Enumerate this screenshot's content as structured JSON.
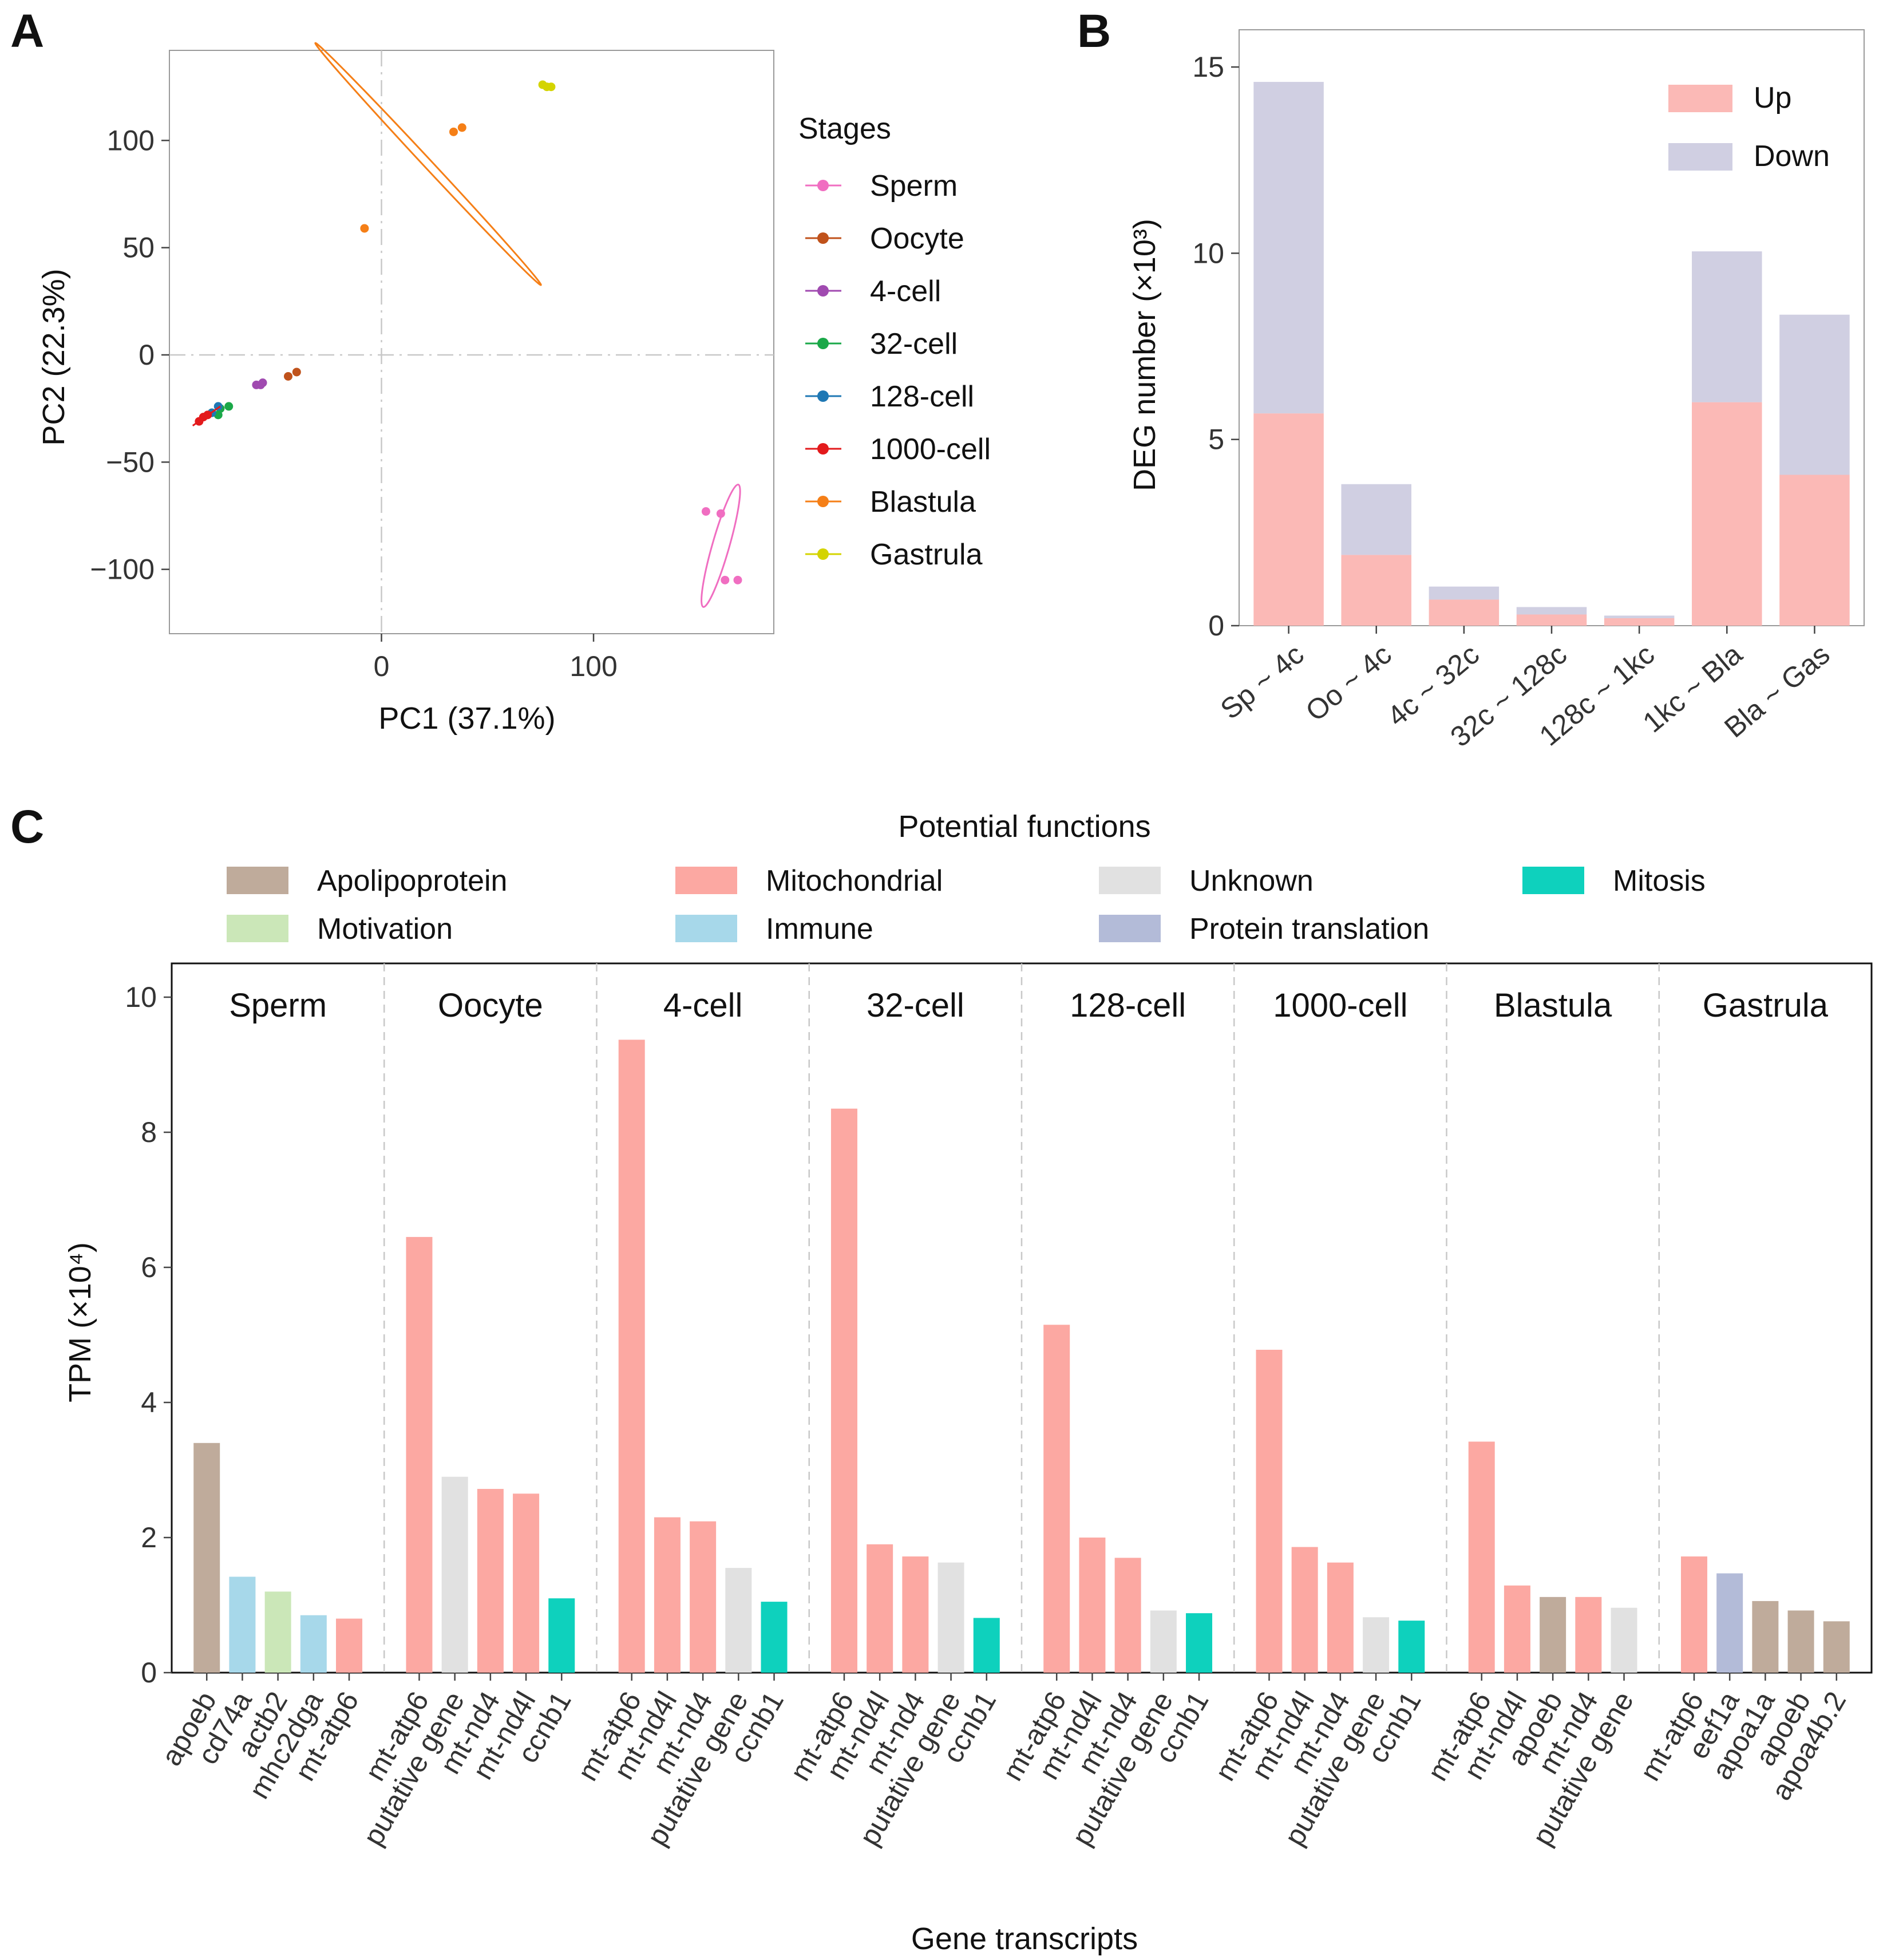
{
  "chart_data": [
    {
      "panel": "A",
      "type": "scatter",
      "xlabel": "PC1 (37.1%)",
      "ylabel": "PC2 (22.3%)",
      "xticks": [
        "0",
        "100"
      ],
      "yticks": [
        "−100",
        "−50",
        "0",
        "50",
        "100"
      ],
      "xtick_values": [
        0,
        100
      ],
      "ytick_values": [
        -100,
        -50,
        0,
        50,
        100
      ],
      "xlim": [
        -100,
        185
      ],
      "ylim": [
        -130,
        142
      ],
      "legend_title": "Stages",
      "legend_position": "right",
      "series": [
        {
          "name": "Sperm",
          "color": "#f06ec1",
          "points": [
            [
              153,
              -73
            ],
            [
              160,
              -74
            ],
            [
              162,
              -105
            ],
            [
              168,
              -105
            ]
          ],
          "ellipse": {
            "cx": 160,
            "cy": -89,
            "rx": 30,
            "ry": 4,
            "angle": -74
          }
        },
        {
          "name": "Oocyte",
          "color": "#c0521b",
          "points": [
            [
              -40,
              -8
            ],
            [
              -44,
              -10
            ]
          ]
        },
        {
          "name": "4-cell",
          "color": "#a04ab0",
          "points": [
            [
              -56,
              -13
            ],
            [
              -57,
              -14
            ],
            [
              -59,
              -14
            ]
          ]
        },
        {
          "name": "32-cell",
          "color": "#1aa848",
          "points": [
            [
              -72,
              -24
            ],
            [
              -77,
              -28
            ],
            [
              -80,
              -27
            ],
            [
              -76,
              -25
            ]
          ]
        },
        {
          "name": "128-cell",
          "color": "#1f78b4",
          "points": [
            [
              -77,
              -24
            ],
            [
              -80,
              -27
            ]
          ]
        },
        {
          "name": "1000-cell",
          "color": "#e31a1c",
          "points": [
            [
              -84,
              -29
            ],
            [
              -86,
              -31
            ],
            [
              -82,
              -28
            ]
          ]
        },
        {
          "name": "Blastula",
          "color": "#f57f17",
          "points": [
            [
              -8,
              59
            ],
            [
              34,
              104
            ],
            [
              38,
              106
            ]
          ],
          "ellipse": {
            "cx": 22,
            "cy": 89,
            "rx": 78,
            "ry": 2,
            "angle": 47
          }
        },
        {
          "name": "Gastrula",
          "color": "#d4d400",
          "points": [
            [
              76,
              126
            ],
            [
              78,
              125
            ],
            [
              80,
              125
            ]
          ]
        }
      ]
    },
    {
      "panel": "B",
      "type": "bar",
      "stacked": true,
      "ylabel": "DEG number (×10³)",
      "ylim": [
        0,
        16
      ],
      "yticks": [
        "0",
        "5",
        "10",
        "15"
      ],
      "ytick_values": [
        0,
        5,
        10,
        15
      ],
      "categories": [
        "Sp ~ 4c",
        "Oo ~ 4c",
        "4c ~ 32c",
        "32c ~ 128c",
        "128c ~ 1kc",
        "1kc ~ Bla",
        "Bla ~ Gas"
      ],
      "legend_position": "top-right",
      "series": [
        {
          "name": "Up",
          "color": "#fbb9b6",
          "values": [
            5.7,
            1.9,
            0.7,
            0.3,
            0.2,
            6.0,
            4.05
          ]
        },
        {
          "name": "Down",
          "color": "#d0cfe2",
          "values": [
            8.9,
            1.9,
            0.35,
            0.2,
            0.07,
            4.05,
            4.3
          ]
        }
      ]
    },
    {
      "panel": "C",
      "type": "bar",
      "title": "Potential functions",
      "xlabel": "Gene transcripts",
      "ylabel": "TPM (×10⁴)",
      "ylim": [
        0,
        10.5
      ],
      "yticks": [
        "0",
        "2",
        "4",
        "6",
        "8",
        "10"
      ],
      "ytick_values": [
        0,
        2,
        4,
        6,
        8,
        10
      ],
      "functions": [
        {
          "name": "Apolipoprotein",
          "color": "#bfab9b"
        },
        {
          "name": "Motivation",
          "color": "#cbe7b8"
        },
        {
          "name": "Mitochondrial",
          "color": "#fca8a2"
        },
        {
          "name": "Immune",
          "color": "#a7d8ea"
        },
        {
          "name": "Unknown",
          "color": "#e1e1e1"
        },
        {
          "name": "Protein translation",
          "color": "#b3bbd8"
        },
        {
          "name": "Mitosis",
          "color": "#0ed1bd"
        }
      ],
      "groups": [
        {
          "stage": "Sperm",
          "bars": [
            {
              "gene": "apoeb",
              "value": 3.4,
              "function": "Apolipoprotein"
            },
            {
              "gene": "cd74a",
              "value": 1.42,
              "function": "Immune"
            },
            {
              "gene": "actb2",
              "value": 1.2,
              "function": "Motivation"
            },
            {
              "gene": "mhc2dga",
              "value": 0.85,
              "function": "Immune"
            },
            {
              "gene": "mt-atp6",
              "value": 0.8,
              "function": "Mitochondrial"
            }
          ]
        },
        {
          "stage": "Oocyte",
          "bars": [
            {
              "gene": "mt-atp6",
              "value": 6.45,
              "function": "Mitochondrial"
            },
            {
              "gene": "putative gene",
              "value": 2.9,
              "function": "Unknown"
            },
            {
              "gene": "mt-nd4",
              "value": 2.72,
              "function": "Mitochondrial"
            },
            {
              "gene": "mt-nd4l",
              "value": 2.65,
              "function": "Mitochondrial"
            },
            {
              "gene": "ccnb1",
              "value": 1.1,
              "function": "Mitosis"
            }
          ]
        },
        {
          "stage": "4-cell",
          "bars": [
            {
              "gene": "mt-atp6",
              "value": 9.37,
              "function": "Mitochondrial"
            },
            {
              "gene": "mt-nd4l",
              "value": 2.3,
              "function": "Mitochondrial"
            },
            {
              "gene": "mt-nd4",
              "value": 2.24,
              "function": "Mitochondrial"
            },
            {
              "gene": "putative gene",
              "value": 1.55,
              "function": "Unknown"
            },
            {
              "gene": "ccnb1",
              "value": 1.05,
              "function": "Mitosis"
            }
          ]
        },
        {
          "stage": "32-cell",
          "bars": [
            {
              "gene": "mt-atp6",
              "value": 8.35,
              "function": "Mitochondrial"
            },
            {
              "gene": "mt-nd4l",
              "value": 1.9,
              "function": "Mitochondrial"
            },
            {
              "gene": "mt-nd4",
              "value": 1.72,
              "function": "Mitochondrial"
            },
            {
              "gene": "putative gene",
              "value": 1.63,
              "function": "Unknown"
            },
            {
              "gene": "ccnb1",
              "value": 0.81,
              "function": "Mitosis"
            }
          ]
        },
        {
          "stage": "128-cell",
          "bars": [
            {
              "gene": "mt-atp6",
              "value": 5.15,
              "function": "Mitochondrial"
            },
            {
              "gene": "mt-nd4l",
              "value": 2.0,
              "function": "Mitochondrial"
            },
            {
              "gene": "mt-nd4",
              "value": 1.7,
              "function": "Mitochondrial"
            },
            {
              "gene": "putative gene",
              "value": 0.92,
              "function": "Unknown"
            },
            {
              "gene": "ccnb1",
              "value": 0.88,
              "function": "Mitosis"
            }
          ]
        },
        {
          "stage": "1000-cell",
          "bars": [
            {
              "gene": "mt-atp6",
              "value": 4.78,
              "function": "Mitochondrial"
            },
            {
              "gene": "mt-nd4l",
              "value": 1.86,
              "function": "Mitochondrial"
            },
            {
              "gene": "mt-nd4",
              "value": 1.63,
              "function": "Mitochondrial"
            },
            {
              "gene": "putative gene",
              "value": 0.82,
              "function": "Unknown"
            },
            {
              "gene": "ccnb1",
              "value": 0.77,
              "function": "Mitosis"
            }
          ]
        },
        {
          "stage": "Blastula",
          "bars": [
            {
              "gene": "mt-atp6",
              "value": 3.42,
              "function": "Mitochondrial"
            },
            {
              "gene": "mt-nd4l",
              "value": 1.29,
              "function": "Mitochondrial"
            },
            {
              "gene": "apoeb",
              "value": 1.12,
              "function": "Apolipoprotein"
            },
            {
              "gene": "mt-nd4",
              "value": 1.12,
              "function": "Mitochondrial"
            },
            {
              "gene": "putative gene",
              "value": 0.96,
              "function": "Unknown"
            }
          ]
        },
        {
          "stage": "Gastrula",
          "bars": [
            {
              "gene": "mt-atp6",
              "value": 1.72,
              "function": "Mitochondrial"
            },
            {
              "gene": "eef1a",
              "value": 1.47,
              "function": "Protein translation"
            },
            {
              "gene": "apoa1a",
              "value": 1.06,
              "function": "Apolipoprotein"
            },
            {
              "gene": "apoeb",
              "value": 0.92,
              "function": "Apolipoprotein"
            },
            {
              "gene": "apoa4b.2",
              "value": 0.76,
              "function": "Apolipoprotein"
            }
          ]
        }
      ]
    }
  ],
  "panel_labels": {
    "a": "A",
    "b": "B",
    "c": "C"
  }
}
